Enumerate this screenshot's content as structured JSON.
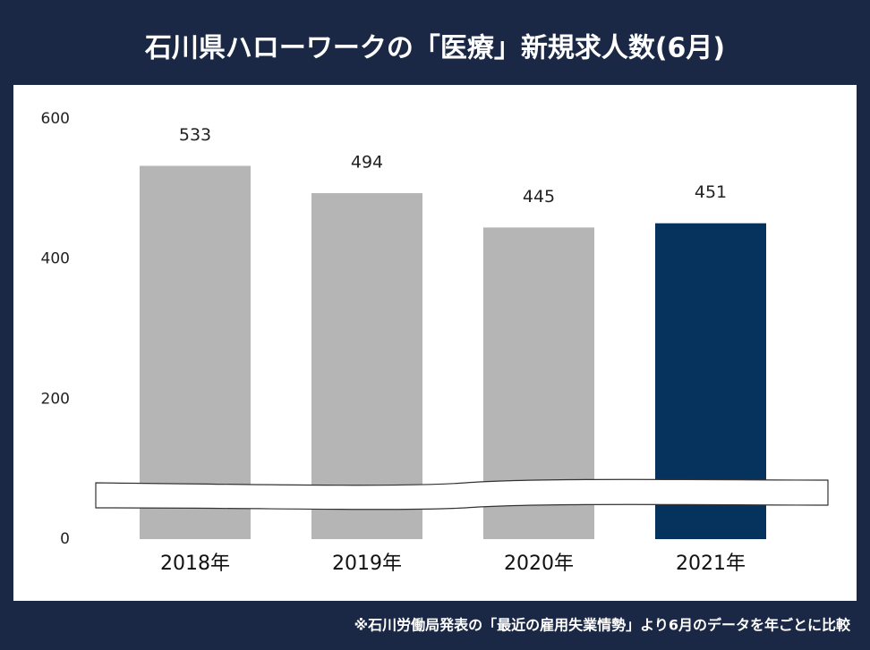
{
  "chart_data": {
    "type": "bar",
    "title": "石川県ハローワークの「医療」新規求人数(6月)",
    "note": "※石川労働局発表の「最近の雇用失業情勢」より6月のデータを年ごとに比較",
    "categories": [
      "2018年",
      "2019年",
      "2020年",
      "2021年"
    ],
    "values": [
      533,
      494,
      445,
      451
    ],
    "colors": [
      "#b5b5b5",
      "#b5b5b5",
      "#b5b5b5",
      "#06325e"
    ],
    "ylim": [
      0,
      600
    ],
    "yticks": [
      0,
      200,
      400,
      600
    ],
    "grid": false
  }
}
